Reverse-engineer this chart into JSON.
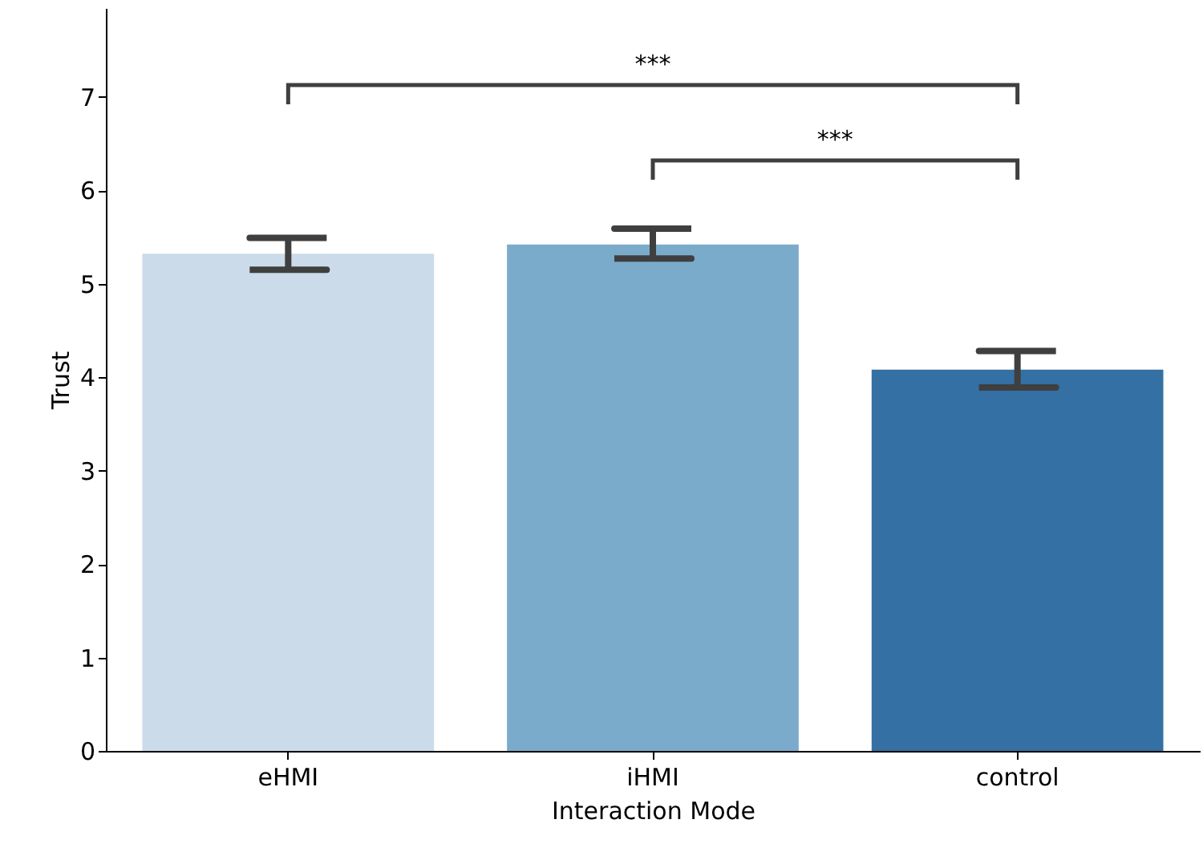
{
  "chart_data": {
    "type": "bar",
    "xlabel": "Interaction Mode",
    "ylabel": "Trust",
    "categories": [
      "eHMI",
      "iHMI",
      "control"
    ],
    "values": [
      5.32,
      5.42,
      4.08
    ],
    "colors": [
      "#cbdbea",
      "#7aabcb",
      "#3470a3"
    ],
    "errors": [
      [
        5.15,
        5.49
      ],
      [
        5.27,
        5.59
      ],
      [
        3.89,
        4.28
      ]
    ],
    "ylim": [
      0,
      7.95
    ],
    "yticks": [
      0,
      1,
      2,
      3,
      4,
      5,
      6,
      7
    ],
    "grid": false,
    "annotations": [
      "***",
      "***"
    ]
  }
}
